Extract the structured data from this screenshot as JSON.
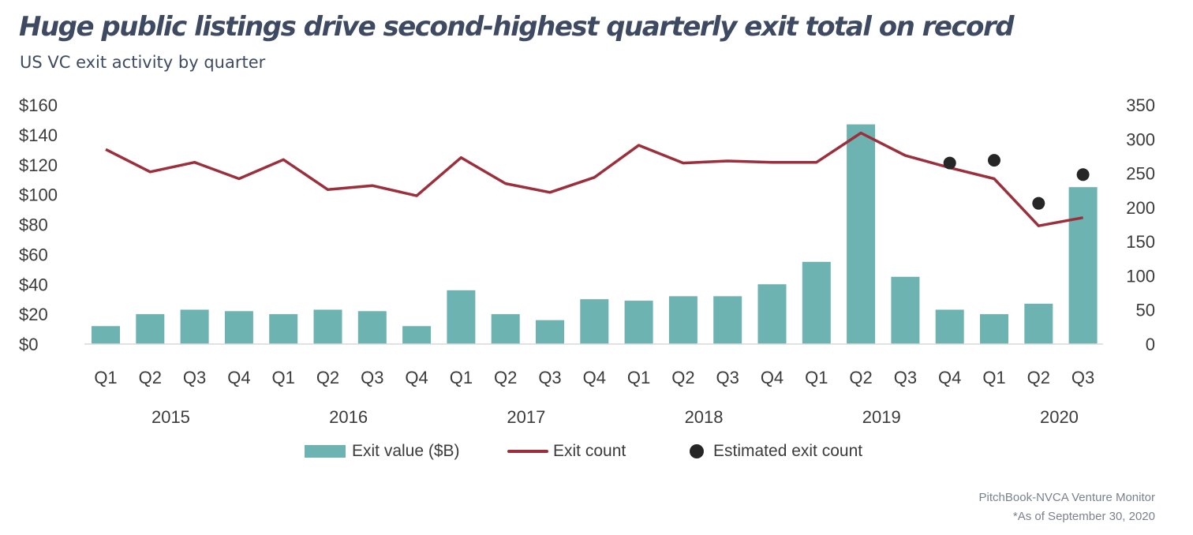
{
  "header": {
    "title": "Huge public listings drive second-highest quarterly exit total on record",
    "subtitle": "US VC exit activity by quarter"
  },
  "legend": {
    "bar_label": "Exit value ($B)",
    "line_label": "Exit count",
    "dot_label": "Estimated exit count"
  },
  "source": {
    "line1": "PitchBook-NVCA Venture Monitor",
    "line2": "*As of September 30, 2020"
  },
  "colors": {
    "bar": "#6db3b2",
    "line": "#9b2f3c",
    "dot": "#262626",
    "title": "#3e4a62"
  },
  "chart_data": {
    "type": "bar",
    "categories": [
      "Q1",
      "Q2",
      "Q3",
      "Q4",
      "Q1",
      "Q2",
      "Q3",
      "Q4",
      "Q1",
      "Q2",
      "Q3",
      "Q4",
      "Q1",
      "Q2",
      "Q3",
      "Q4",
      "Q1",
      "Q2",
      "Q3",
      "Q4",
      "Q1",
      "Q2",
      "Q3"
    ],
    "years": [
      {
        "label": "2015",
        "quarters": 4
      },
      {
        "label": "2016",
        "quarters": 4
      },
      {
        "label": "2017",
        "quarters": 4
      },
      {
        "label": "2018",
        "quarters": 4
      },
      {
        "label": "2019",
        "quarters": 4
      },
      {
        "label": "2020",
        "quarters": 3
      }
    ],
    "series": [
      {
        "name": "Exit value ($B)",
        "type": "bar",
        "axis": "left",
        "values": [
          12,
          20,
          23,
          22,
          20,
          23,
          22,
          12,
          36,
          20,
          16,
          30,
          29,
          32,
          32,
          40,
          55,
          147,
          45,
          23,
          20,
          27,
          105
        ]
      },
      {
        "name": "Exit count",
        "type": "line",
        "axis": "right",
        "values": [
          285,
          252,
          266,
          242,
          270,
          226,
          232,
          217,
          273,
          235,
          222,
          244,
          291,
          265,
          268,
          266,
          266,
          309,
          276,
          258,
          242,
          173,
          185
        ]
      },
      {
        "name": "Estimated exit count",
        "type": "scatter",
        "axis": "right",
        "points": [
          {
            "index": 19,
            "value": 265
          },
          {
            "index": 20,
            "value": 269
          },
          {
            "index": 21,
            "value": 206
          },
          {
            "index": 22,
            "value": 248
          }
        ]
      }
    ],
    "y_left": {
      "ticks": [
        "$0",
        "$20",
        "$40",
        "$60",
        "$80",
        "$100",
        "$120",
        "$140",
        "$160"
      ],
      "range": [
        0,
        160
      ]
    },
    "y_right": {
      "ticks": [
        "0",
        "50",
        "100",
        "150",
        "200",
        "250",
        "300",
        "350"
      ],
      "range": [
        0,
        350
      ]
    },
    "grid": false,
    "legend_position": "bottom"
  }
}
